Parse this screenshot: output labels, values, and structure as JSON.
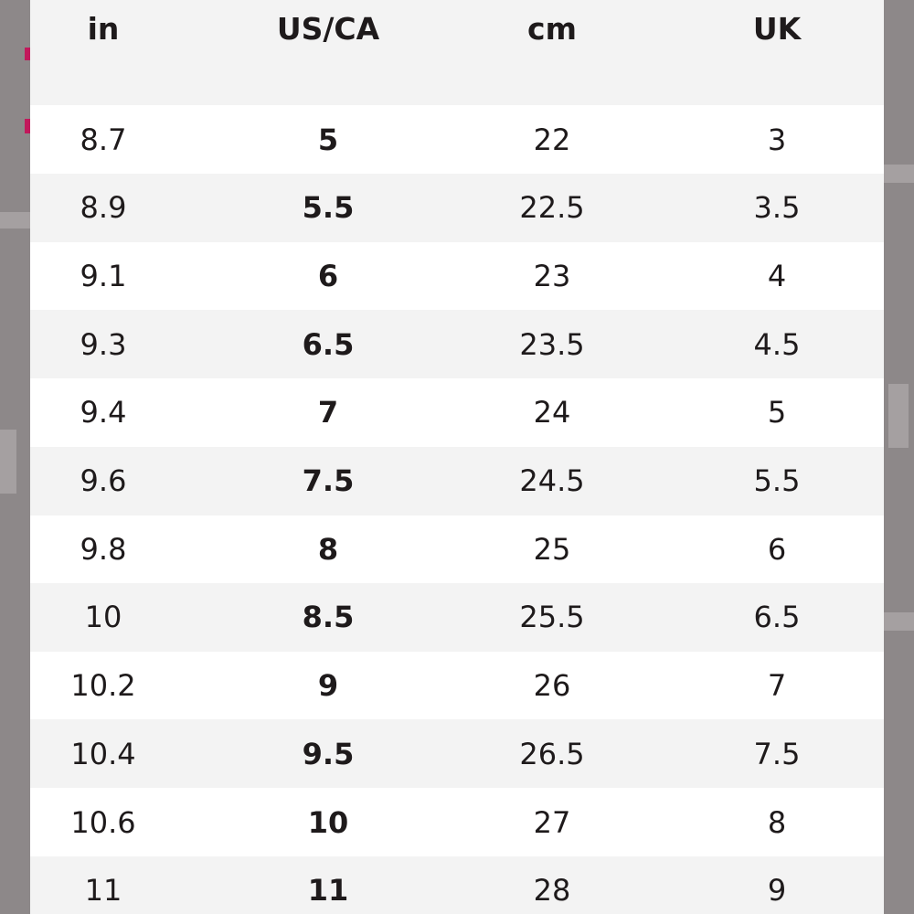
{
  "table": {
    "header": [
      "in",
      "US/CA",
      "cm",
      "UK"
    ],
    "rows": [
      [
        "8.7",
        "5",
        "22",
        "3"
      ],
      [
        "8.9",
        "5.5",
        "22.5",
        "3.5"
      ],
      [
        "9.1",
        "6",
        "23",
        "4"
      ],
      [
        "9.3",
        "6.5",
        "23.5",
        "4.5"
      ],
      [
        "9.4",
        "7",
        "24",
        "5"
      ],
      [
        "9.6",
        "7.5",
        "24.5",
        "5.5"
      ],
      [
        "9.8",
        "8",
        "25",
        "6"
      ],
      [
        "10",
        "8.5",
        "25.5",
        "6.5"
      ],
      [
        "10.2",
        "9",
        "26",
        "7"
      ],
      [
        "10.4",
        "9.5",
        "26.5",
        "7.5"
      ],
      [
        "10.6",
        "10",
        "27",
        "8"
      ],
      [
        "11",
        "11",
        "28",
        "9"
      ]
    ]
  }
}
